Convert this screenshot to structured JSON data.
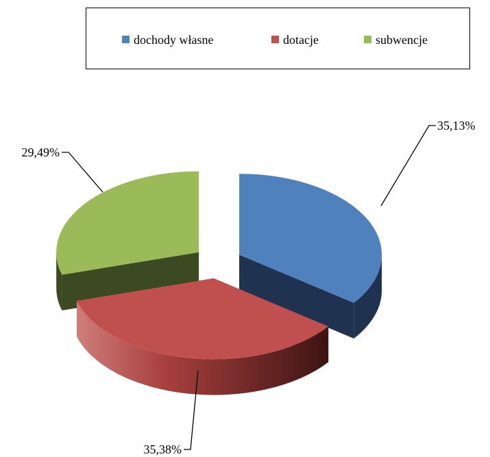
{
  "chart_data": {
    "type": "pie",
    "style": "3d-exploded",
    "legend_position": "top",
    "categories": [
      "dochody własne",
      "dotacje",
      "subwencje"
    ],
    "values": [
      35.13,
      35.38,
      29.49
    ],
    "labels": [
      "35,13%",
      "35,38%",
      "29,49%"
    ],
    "colors": [
      "#4f81bd",
      "#c0504d",
      "#9bbb59"
    ]
  }
}
